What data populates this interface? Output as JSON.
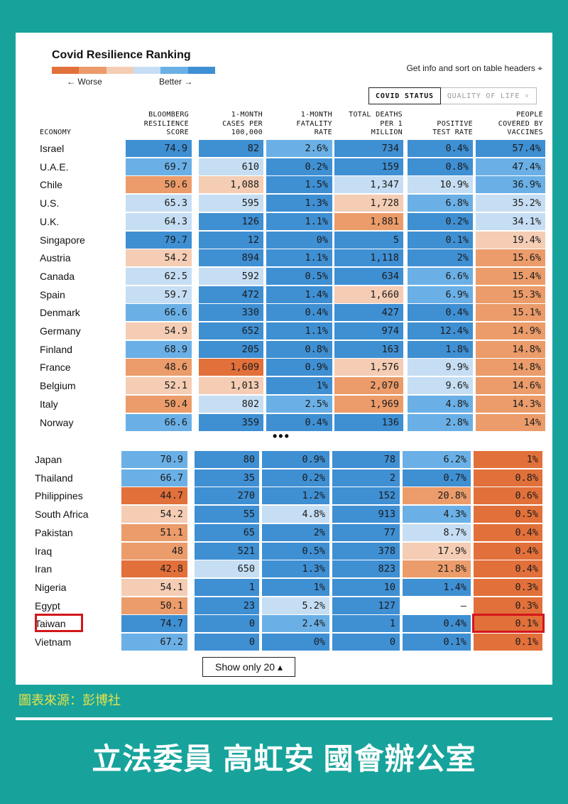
{
  "title": "Covid Resilience Ranking",
  "scale": {
    "worse_label": "← Worse",
    "better_label": "Better →",
    "colors": [
      "#e2703a",
      "#eb9c6a",
      "#f4cdb4",
      "#c6def3",
      "#6ab0e6",
      "#3f8fd3"
    ]
  },
  "info_text": "Get info and sort on table headers ⌖",
  "tabs": [
    {
      "label": "COVID STATUS",
      "active": true
    },
    {
      "label": "QUALITY OF LIFE ▿",
      "active": false
    }
  ],
  "headers": {
    "economy": "ECONOMY",
    "score": [
      "BLOOMBERG",
      "RESILIENCE",
      "SCORE"
    ],
    "cases": [
      "1-MONTH",
      "CASES PER",
      "100,000"
    ],
    "fatality": [
      "1-MONTH",
      "FATALITY",
      "RATE"
    ],
    "deaths": [
      "TOTAL DEATHS",
      "PER 1",
      "MILLION"
    ],
    "positive": [
      "POSITIVE",
      "TEST RATE"
    ],
    "vaccines": [
      "PEOPLE",
      "COVERED BY",
      "VACCINES"
    ]
  },
  "color_hex": {
    "do": "#e2703a",
    "o": "#eb9c6a",
    "lo": "#f4cdb4",
    "lb": "#c6def3",
    "b": "#6ab0e6",
    "db": "#3f8fd3",
    "w": "#ffffff"
  },
  "chart_data": {
    "type": "table",
    "columns": [
      "ECONOMY",
      "BLOOMBERG RESILIENCE SCORE",
      "1-MONTH CASES PER 100,000",
      "1-MONTH FATALITY RATE",
      "TOTAL DEATHS PER 1 MILLION",
      "POSITIVE TEST RATE",
      "PEOPLE COVERED BY VACCINES"
    ],
    "top_rows": [
      {
        "name": "Israel",
        "values": [
          "74.9",
          "82",
          "2.6%",
          "734",
          "0.4%",
          "57.4%"
        ],
        "colors": [
          "db",
          "db",
          "b",
          "db",
          "db",
          "db"
        ]
      },
      {
        "name": "U.A.E.",
        "values": [
          "69.7",
          "610",
          "0.2%",
          "159",
          "0.8%",
          "47.4%"
        ],
        "colors": [
          "b",
          "lb",
          "db",
          "db",
          "db",
          "b"
        ]
      },
      {
        "name": "Chile",
        "values": [
          "50.6",
          "1,088",
          "1.5%",
          "1,347",
          "10.9%",
          "36.9%"
        ],
        "colors": [
          "o",
          "lo",
          "db",
          "lb",
          "lb",
          "b"
        ]
      },
      {
        "name": "U.S.",
        "values": [
          "65.3",
          "595",
          "1.3%",
          "1,728",
          "6.8%",
          "35.2%"
        ],
        "colors": [
          "lb",
          "lb",
          "db",
          "lo",
          "b",
          "lb"
        ]
      },
      {
        "name": "U.K.",
        "values": [
          "64.3",
          "126",
          "1.1%",
          "1,881",
          "0.2%",
          "34.1%"
        ],
        "colors": [
          "lb",
          "db",
          "db",
          "o",
          "db",
          "lb"
        ]
      },
      {
        "name": "Singapore",
        "values": [
          "79.7",
          "12",
          "0%",
          "5",
          "0.1%",
          "19.4%"
        ],
        "colors": [
          "db",
          "db",
          "db",
          "db",
          "db",
          "lo"
        ]
      },
      {
        "name": "Austria",
        "values": [
          "54.2",
          "894",
          "1.1%",
          "1,118",
          "2%",
          "15.6%"
        ],
        "colors": [
          "lo",
          "db",
          "db",
          "db",
          "db",
          "o"
        ]
      },
      {
        "name": "Canada",
        "values": [
          "62.5",
          "592",
          "0.5%",
          "634",
          "6.6%",
          "15.4%"
        ],
        "colors": [
          "lb",
          "lb",
          "db",
          "db",
          "b",
          "o"
        ]
      },
      {
        "name": "Spain",
        "values": [
          "59.7",
          "472",
          "1.4%",
          "1,660",
          "6.9%",
          "15.3%"
        ],
        "colors": [
          "lb",
          "db",
          "db",
          "lo",
          "b",
          "o"
        ]
      },
      {
        "name": "Denmark",
        "values": [
          "66.6",
          "330",
          "0.4%",
          "427",
          "0.4%",
          "15.1%"
        ],
        "colors": [
          "b",
          "db",
          "db",
          "db",
          "db",
          "o"
        ]
      },
      {
        "name": "Germany",
        "values": [
          "54.9",
          "652",
          "1.1%",
          "974",
          "12.4%",
          "14.9%"
        ],
        "colors": [
          "lo",
          "db",
          "db",
          "db",
          "db",
          "o"
        ]
      },
      {
        "name": "Finland",
        "values": [
          "68.9",
          "205",
          "0.8%",
          "163",
          "1.8%",
          "14.8%"
        ],
        "colors": [
          "b",
          "db",
          "db",
          "db",
          "db",
          "o"
        ]
      },
      {
        "name": "France",
        "values": [
          "48.6",
          "1,609",
          "0.9%",
          "1,576",
          "9.9%",
          "14.8%"
        ],
        "colors": [
          "o",
          "do",
          "db",
          "lo",
          "lb",
          "o"
        ]
      },
      {
        "name": "Belgium",
        "values": [
          "52.1",
          "1,013",
          "1%",
          "2,070",
          "9.6%",
          "14.6%"
        ],
        "colors": [
          "lo",
          "lo",
          "db",
          "o",
          "lb",
          "o"
        ]
      },
      {
        "name": "Italy",
        "values": [
          "50.4",
          "802",
          "2.5%",
          "1,969",
          "4.8%",
          "14.3%"
        ],
        "colors": [
          "o",
          "lb",
          "b",
          "o",
          "b",
          "o"
        ]
      },
      {
        "name": "Norway",
        "values": [
          "66.6",
          "359",
          "0.4%",
          "136",
          "2.8%",
          "14%"
        ],
        "colors": [
          "b",
          "db",
          "db",
          "db",
          "b",
          "o"
        ]
      }
    ],
    "bottom_rows": [
      {
        "name": "Japan",
        "values": [
          "70.9",
          "80",
          "0.9%",
          "78",
          "6.2%",
          "1%"
        ],
        "colors": [
          "b",
          "db",
          "db",
          "db",
          "b",
          "do"
        ]
      },
      {
        "name": "Thailand",
        "values": [
          "66.7",
          "35",
          "0.2%",
          "2",
          "0.7%",
          "0.8%"
        ],
        "colors": [
          "b",
          "db",
          "db",
          "db",
          "db",
          "do"
        ]
      },
      {
        "name": "Philippines",
        "values": [
          "44.7",
          "270",
          "1.2%",
          "152",
          "20.8%",
          "0.6%"
        ],
        "colors": [
          "do",
          "db",
          "db",
          "db",
          "o",
          "do"
        ]
      },
      {
        "name": "South Africa",
        "values": [
          "54.2",
          "55",
          "4.8%",
          "913",
          "4.3%",
          "0.5%"
        ],
        "colors": [
          "lo",
          "db",
          "lb",
          "db",
          "b",
          "do"
        ]
      },
      {
        "name": "Pakistan",
        "values": [
          "51.1",
          "65",
          "2%",
          "77",
          "8.7%",
          "0.4%"
        ],
        "colors": [
          "o",
          "db",
          "db",
          "db",
          "lb",
          "do"
        ]
      },
      {
        "name": "Iraq",
        "values": [
          "48",
          "521",
          "0.5%",
          "378",
          "17.9%",
          "0.4%"
        ],
        "colors": [
          "o",
          "db",
          "db",
          "db",
          "lo",
          "do"
        ]
      },
      {
        "name": "Iran",
        "values": [
          "42.8",
          "650",
          "1.3%",
          "823",
          "21.8%",
          "0.4%"
        ],
        "colors": [
          "do",
          "lb",
          "db",
          "db",
          "o",
          "do"
        ]
      },
      {
        "name": "Nigeria",
        "values": [
          "54.1",
          "1",
          "1%",
          "10",
          "1.4%",
          "0.3%"
        ],
        "colors": [
          "lo",
          "db",
          "db",
          "db",
          "db",
          "do"
        ]
      },
      {
        "name": "Egypt",
        "values": [
          "50.1",
          "23",
          "5.2%",
          "127",
          "–",
          "0.3%"
        ],
        "colors": [
          "o",
          "db",
          "lb",
          "db",
          "w",
          "do"
        ]
      },
      {
        "name": "Taiwan",
        "values": [
          "74.7",
          "0",
          "2.4%",
          "1",
          "0.4%",
          "0.1%"
        ],
        "colors": [
          "db",
          "db",
          "b",
          "db",
          "db",
          "do"
        ]
      },
      {
        "name": "Vietnam",
        "values": [
          "67.2",
          "0",
          "0%",
          "0",
          "0.1%",
          "0.1%"
        ],
        "colors": [
          "b",
          "db",
          "db",
          "db",
          "db",
          "do"
        ]
      }
    ]
  },
  "ellipsis": "•••",
  "show_button": "Show only 20 ▴",
  "source": "圖表來源：彭博社",
  "footer": "立法委員 高虹安 國會辦公室"
}
